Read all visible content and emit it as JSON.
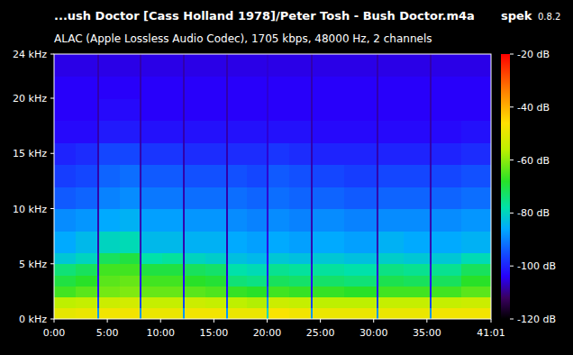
{
  "chart_data": {
    "type": "heatmap",
    "title": "...ush Doctor [Cass Holland 1978]/Peter Tosh - Bush Doctor.m4a",
    "app_name": "spek",
    "app_version": "0.8.2",
    "subtitle": "ALAC (Apple Lossless Audio Codec), 1705 kbps, 48000 Hz, 2 channels",
    "xlim": [
      0,
      2461
    ],
    "xticks": [
      {
        "value": 0,
        "label": "0:00"
      },
      {
        "value": 300,
        "label": "5:00"
      },
      {
        "value": 600,
        "label": "10:00"
      },
      {
        "value": 900,
        "label": "15:00"
      },
      {
        "value": 1200,
        "label": "20:00"
      },
      {
        "value": 1500,
        "label": "25:00"
      },
      {
        "value": 1800,
        "label": "30:00"
      },
      {
        "value": 2100,
        "label": "35:00"
      },
      {
        "value": 2461,
        "label": "41:01"
      }
    ],
    "ylim": [
      0,
      24
    ],
    "yticks": [
      {
        "value": 0,
        "label": "0 kHz"
      },
      {
        "value": 5,
        "label": "5 kHz"
      },
      {
        "value": 10,
        "label": "10 kHz"
      },
      {
        "value": 15,
        "label": "15 kHz"
      },
      {
        "value": 20,
        "label": "20 kHz"
      },
      {
        "value": 24,
        "label": "24 kHz"
      }
    ],
    "x": [
      0,
      122,
      245,
      255,
      369,
      483,
      493,
      610,
      728,
      738,
      853,
      968,
      978,
      1087,
      1197,
      1207,
      1326,
      1446,
      1456,
      1636,
      1816,
      1826,
      1971,
      2116,
      2126,
      2293,
      2461
    ],
    "y": [
      0,
      1,
      2,
      3,
      4,
      5,
      6,
      8,
      10,
      12,
      14,
      16,
      18,
      20,
      22,
      24
    ],
    "cells": [
      [
        -50,
        -56,
        -66,
        -70,
        -74,
        -82,
        -86,
        -89,
        -94,
        -97,
        -100,
        -103,
        -104,
        -104,
        -105
      ],
      [
        -49,
        -55,
        -64,
        -68,
        -72,
        -80,
        -84,
        -88,
        -93,
        -96,
        -99,
        -103,
        -104,
        -104,
        -105
      ],
      [
        -88,
        -96,
        -102,
        -104,
        -106,
        -107,
        -108,
        -108,
        -108,
        -108,
        -108,
        -108,
        -108,
        -108,
        -108
      ],
      [
        -48,
        -54,
        -62,
        -64,
        -66,
        -72,
        -80,
        -86,
        -90,
        -93,
        -96,
        -101,
        -103,
        -104,
        -105
      ],
      [
        -48,
        -53,
        -61,
        -63,
        -66,
        -70,
        -79,
        -85,
        -89,
        -92,
        -96,
        -101,
        -103,
        -104,
        -105
      ],
      [
        -88,
        -96,
        -102,
        -104,
        -106,
        -107,
        -108,
        -108,
        -108,
        -108,
        -108,
        -108,
        -108,
        -108,
        -108
      ],
      [
        -49,
        -55,
        -63,
        -66,
        -70,
        -78,
        -84,
        -87,
        -91,
        -94,
        -98,
        -102,
        -104,
        -104,
        -105
      ],
      [
        -49,
        -55,
        -63,
        -66,
        -70,
        -77,
        -84,
        -87,
        -91,
        -94,
        -98,
        -102,
        -104,
        -104,
        -105
      ],
      [
        -88,
        -96,
        -102,
        -104,
        -106,
        -107,
        -108,
        -108,
        -108,
        -108,
        -108,
        -108,
        -108,
        -108,
        -108
      ],
      [
        -48,
        -54,
        -64,
        -68,
        -72,
        -80,
        -85,
        -88,
        -92,
        -95,
        -99,
        -102,
        -104,
        -104,
        -105
      ],
      [
        -48,
        -55,
        -65,
        -69,
        -73,
        -81,
        -85,
        -88,
        -92,
        -95,
        -99,
        -102,
        -104,
        -104,
        -105
      ],
      [
        -88,
        -96,
        -102,
        -104,
        -106,
        -107,
        -108,
        -108,
        -108,
        -108,
        -108,
        -108,
        -108,
        -108,
        -108
      ],
      [
        -49,
        -56,
        -67,
        -74,
        -78,
        -83,
        -86,
        -89,
        -92,
        -95,
        -99,
        -102,
        -104,
        -104,
        -105
      ],
      [
        -49,
        -57,
        -68,
        -75,
        -79,
        -84,
        -87,
        -90,
        -93,
        -96,
        -99,
        -102,
        -104,
        -104,
        -105
      ],
      [
        -80,
        -88,
        -96,
        -100,
        -102,
        -104,
        -105,
        -106,
        -106,
        -106,
        -106,
        -106,
        -106,
        -106,
        -106
      ],
      [
        -47,
        -54,
        -66,
        -72,
        -76,
        -82,
        -86,
        -89,
        -92,
        -94,
        -98,
        -102,
        -104,
        -104,
        -105
      ],
      [
        -48,
        -55,
        -67,
        -73,
        -77,
        -83,
        -87,
        -90,
        -93,
        -95,
        -99,
        -102,
        -104,
        -104,
        -105
      ],
      [
        -88,
        -96,
        -102,
        -104,
        -106,
        -107,
        -108,
        -108,
        -108,
        -108,
        -108,
        -108,
        -108,
        -108,
        -108
      ],
      [
        -49,
        -56,
        -67,
        -73,
        -77,
        -82,
        -86,
        -89,
        -93,
        -96,
        -100,
        -103,
        -104,
        -104,
        -105
      ],
      [
        -49,
        -56,
        -68,
        -74,
        -78,
        -83,
        -87,
        -90,
        -94,
        -97,
        -100,
        -103,
        -104,
        -104,
        -105
      ],
      [
        -88,
        -96,
        -102,
        -104,
        -106,
        -107,
        -108,
        -108,
        -108,
        -108,
        -108,
        -108,
        -108,
        -108,
        -108
      ],
      [
        -49,
        -55,
        -66,
        -71,
        -75,
        -81,
        -85,
        -89,
        -93,
        -96,
        -100,
        -103,
        -104,
        -104,
        -105
      ],
      [
        -49,
        -55,
        -66,
        -72,
        -76,
        -82,
        -86,
        -89,
        -93,
        -96,
        -100,
        -103,
        -104,
        -104,
        -105
      ],
      [
        -88,
        -96,
        -102,
        -104,
        -106,
        -107,
        -108,
        -108,
        -108,
        -108,
        -108,
        -108,
        -108,
        -108,
        -108
      ],
      [
        -48,
        -55,
        -66,
        -72,
        -76,
        -82,
        -86,
        -89,
        -93,
        -96,
        -100,
        -103,
        -104,
        -104,
        -105
      ],
      [
        -48,
        -54,
        -64,
        -68,
        -72,
        -79,
        -85,
        -88,
        -92,
        -95,
        -99,
        -102,
        -104,
        -104,
        -105
      ]
    ],
    "color_range": [
      -120,
      -20
    ],
    "color_ticks": [
      {
        "value": -20,
        "label": "-20 dB"
      },
      {
        "value": -40,
        "label": "-40 dB"
      },
      {
        "value": -60,
        "label": "-60 dB"
      },
      {
        "value": -80,
        "label": "-80 dB"
      },
      {
        "value": -100,
        "label": "-100 dB"
      },
      {
        "value": -120,
        "label": "-120 dB"
      }
    ]
  }
}
